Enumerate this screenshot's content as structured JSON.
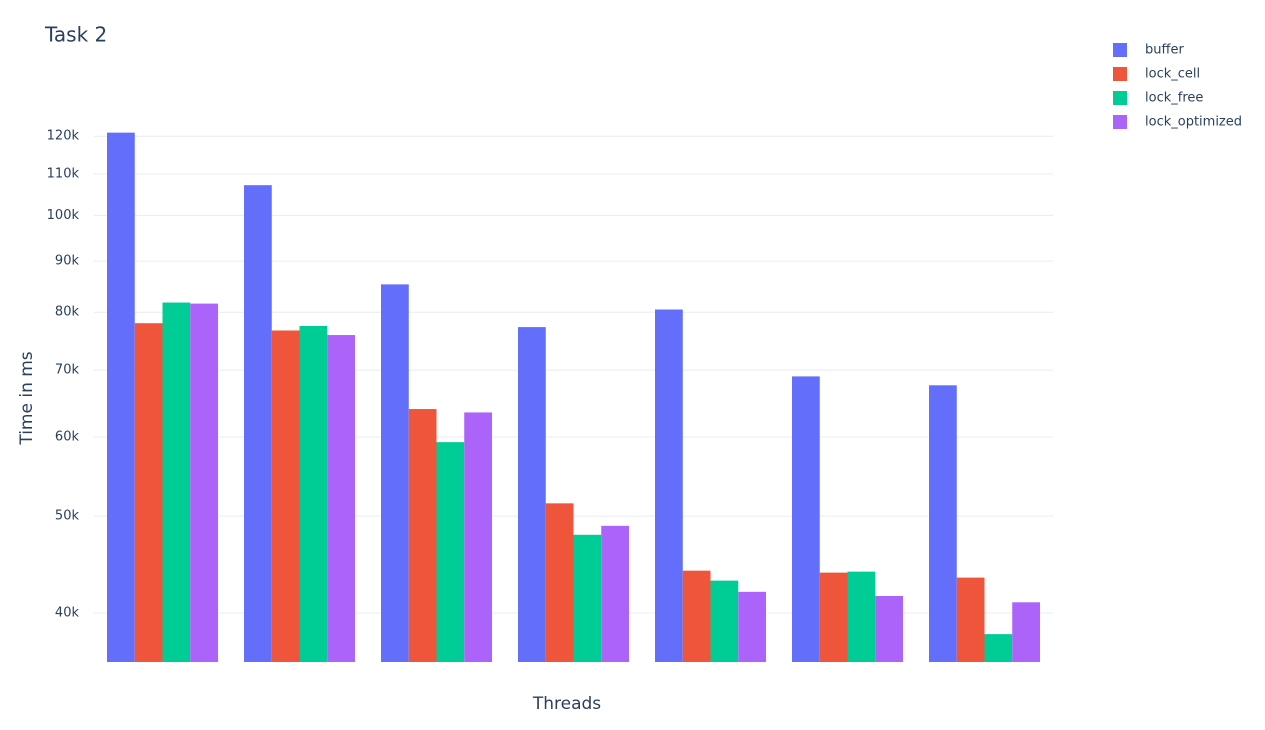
{
  "chart_data": {
    "type": "bar",
    "title": "Task 2",
    "x_label": "Threads",
    "y_label": "Time in ms",
    "categories": [
      null,
      null,
      null,
      null,
      null,
      null,
      null
    ],
    "series": [
      {
        "name": "buffer",
        "color": "#636efa",
        "values": [
          121000,
          107200,
          85300,
          77300,
          80500,
          69000,
          67600
        ]
      },
      {
        "name": "lock_cell",
        "color": "#ef553b",
        "values": [
          78000,
          76700,
          64000,
          51500,
          44100,
          43900,
          43400
        ]
      },
      {
        "name": "lock_free",
        "color": "#00cc96",
        "values": [
          81800,
          77500,
          59300,
          47900,
          43100,
          44000,
          38100
        ]
      },
      {
        "name": "lock_optimized",
        "color": "#ab63fa",
        "values": [
          81600,
          75900,
          63500,
          48900,
          42000,
          41600,
          41000
        ]
      }
    ],
    "ylim": [
      35730,
      120900
    ],
    "log_y": true,
    "grid": true,
    "legend": "top-right",
    "yticks": [
      {
        "value": 40000,
        "label": "40k"
      },
      {
        "value": 50000,
        "label": "50k"
      },
      {
        "value": 60000,
        "label": "60k"
      },
      {
        "value": 70000,
        "label": "70k"
      },
      {
        "value": 80000,
        "label": "80k"
      },
      {
        "value": 90000,
        "label": "90k"
      },
      {
        "value": 100000,
        "label": "100k"
      },
      {
        "value": 110000,
        "label": "110k"
      },
      {
        "value": 120000,
        "label": "120k"
      }
    ]
  }
}
